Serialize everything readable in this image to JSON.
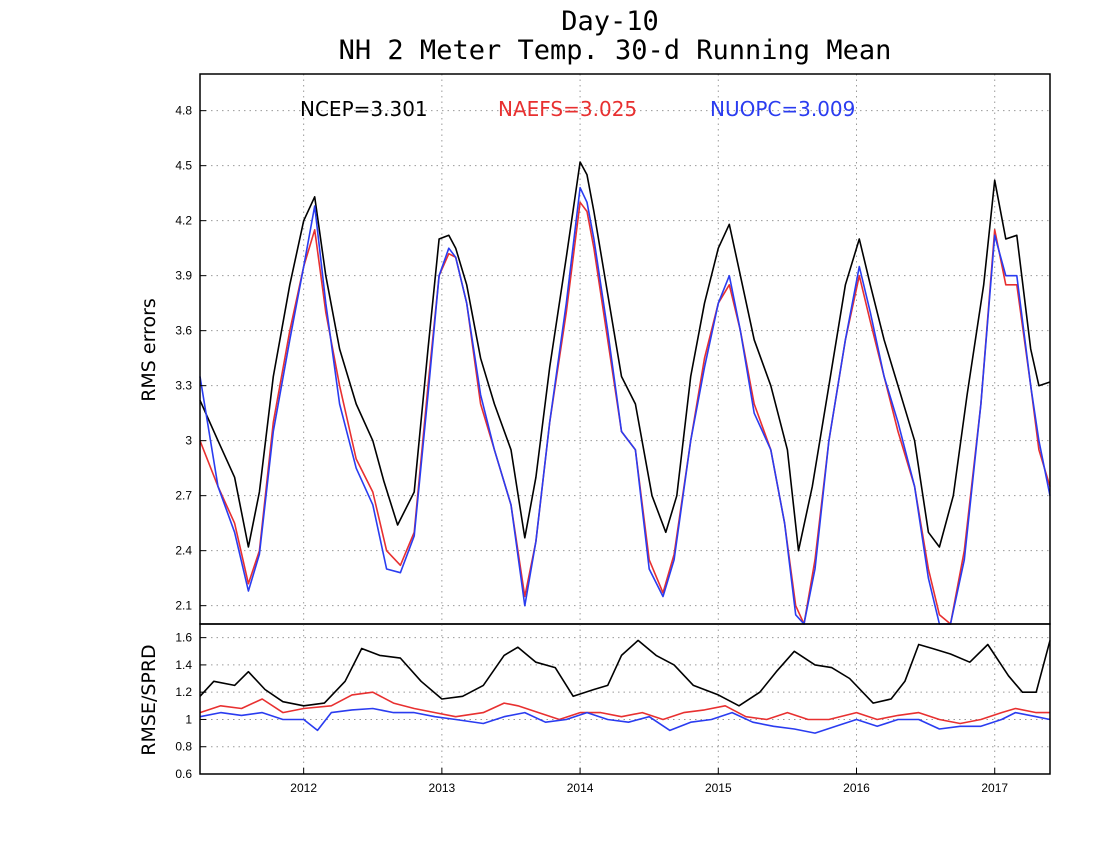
{
  "chart_data": [
    {
      "type": "line",
      "title": "Day-10",
      "subtitle": "NH 2 Meter Temp. 30-d Running Mean",
      "ylabel": "RMS errors",
      "xlim": [
        2011.25,
        2017.4
      ],
      "ylim": [
        2.0,
        5.0
      ],
      "yticks": [
        "2.1",
        "2.4",
        "2.7",
        "3",
        "3.3",
        "3.6",
        "3.9",
        "4.2",
        "4.5",
        "4.8"
      ],
      "grid": true,
      "legend_placement": "top",
      "stats": [
        {
          "label": "NCEP=3.301",
          "color": "#000000"
        },
        {
          "label": "NAEFS=3.025",
          "color": "#e83030"
        },
        {
          "label": "NUOPC=3.009",
          "color": "#2a3cf0"
        }
      ],
      "series": [
        {
          "name": "NCEP",
          "color": "#000000",
          "x": [
            2011.25,
            2011.38,
            2011.5,
            2011.6,
            2011.68,
            2011.78,
            2011.9,
            2012.0,
            2012.08,
            2012.16,
            2012.26,
            2012.38,
            2012.5,
            2012.58,
            2012.68,
            2012.8,
            2012.9,
            2012.98,
            2013.05,
            2013.1,
            2013.18,
            2013.28,
            2013.38,
            2013.5,
            2013.6,
            2013.68,
            2013.78,
            2013.9,
            2014.0,
            2014.05,
            2014.1,
            2014.2,
            2014.3,
            2014.4,
            2014.52,
            2014.62,
            2014.7,
            2014.8,
            2014.9,
            2015.0,
            2015.08,
            2015.16,
            2015.26,
            2015.38,
            2015.5,
            2015.58,
            2015.68,
            2015.8,
            2015.92,
            2016.02,
            2016.1,
            2016.2,
            2016.3,
            2016.42,
            2016.52,
            2016.6,
            2016.7,
            2016.8,
            2016.92,
            2017.0,
            2017.08,
            2017.16,
            2017.26,
            2017.32,
            2017.4
          ],
          "values": [
            3.22,
            3.0,
            2.8,
            2.42,
            2.72,
            3.35,
            3.85,
            4.2,
            4.33,
            3.9,
            3.5,
            3.2,
            3.0,
            2.78,
            2.54,
            2.72,
            3.5,
            4.1,
            4.12,
            4.05,
            3.85,
            3.45,
            3.2,
            2.95,
            2.47,
            2.8,
            3.4,
            4.0,
            4.52,
            4.45,
            4.25,
            3.8,
            3.35,
            3.2,
            2.7,
            2.5,
            2.7,
            3.35,
            3.75,
            4.05,
            4.18,
            3.9,
            3.55,
            3.3,
            2.95,
            2.4,
            2.75,
            3.3,
            3.85,
            4.1,
            3.85,
            3.55,
            3.3,
            3.0,
            2.5,
            2.42,
            2.7,
            3.25,
            3.85,
            4.42,
            4.1,
            4.12,
            3.5,
            3.3,
            3.32
          ]
        },
        {
          "name": "NAEFS",
          "color": "#e83030",
          "x": [
            2011.25,
            2011.38,
            2011.5,
            2011.6,
            2011.68,
            2011.78,
            2011.9,
            2012.0,
            2012.08,
            2012.16,
            2012.26,
            2012.38,
            2012.5,
            2012.6,
            2012.7,
            2012.8,
            2012.9,
            2012.98,
            2013.05,
            2013.1,
            2013.18,
            2013.28,
            2013.38,
            2013.5,
            2013.6,
            2013.68,
            2013.78,
            2013.9,
            2014.0,
            2014.05,
            2014.1,
            2014.2,
            2014.3,
            2014.4,
            2014.5,
            2014.6,
            2014.68,
            2014.8,
            2014.9,
            2015.0,
            2015.08,
            2015.16,
            2015.26,
            2015.38,
            2015.48,
            2015.56,
            2015.62,
            2015.7,
            2015.8,
            2015.92,
            2016.02,
            2016.1,
            2016.2,
            2016.3,
            2016.42,
            2016.52,
            2016.6,
            2016.68,
            2016.78,
            2016.9,
            2017.0,
            2017.08,
            2017.16,
            2017.26,
            2017.32,
            2017.4
          ],
          "values": [
            3.0,
            2.75,
            2.55,
            2.22,
            2.4,
            3.1,
            3.6,
            3.95,
            4.15,
            3.7,
            3.3,
            2.9,
            2.72,
            2.4,
            2.32,
            2.5,
            3.3,
            3.9,
            4.02,
            4.0,
            3.75,
            3.2,
            2.95,
            2.65,
            2.15,
            2.45,
            3.1,
            3.7,
            4.3,
            4.25,
            4.05,
            3.55,
            3.05,
            2.95,
            2.35,
            2.17,
            2.38,
            3.0,
            3.45,
            3.75,
            3.85,
            3.6,
            3.2,
            2.95,
            2.55,
            2.1,
            2.0,
            2.35,
            3.0,
            3.55,
            3.9,
            3.65,
            3.35,
            3.05,
            2.75,
            2.3,
            2.05,
            2.0,
            2.4,
            3.2,
            4.15,
            3.85,
            3.85,
            3.3,
            2.95,
            2.75
          ]
        },
        {
          "name": "NUOPC",
          "color": "#2a3cf0",
          "x": [
            2011.25,
            2011.38,
            2011.5,
            2011.6,
            2011.68,
            2011.78,
            2011.9,
            2012.0,
            2012.08,
            2012.16,
            2012.26,
            2012.38,
            2012.5,
            2012.6,
            2012.7,
            2012.8,
            2012.9,
            2012.98,
            2013.05,
            2013.1,
            2013.18,
            2013.28,
            2013.38,
            2013.5,
            2013.6,
            2013.68,
            2013.78,
            2013.9,
            2014.0,
            2014.05,
            2014.1,
            2014.2,
            2014.3,
            2014.4,
            2014.5,
            2014.6,
            2014.68,
            2014.8,
            2014.9,
            2015.0,
            2015.08,
            2015.16,
            2015.26,
            2015.38,
            2015.48,
            2015.56,
            2015.62,
            2015.7,
            2015.8,
            2015.92,
            2016.02,
            2016.1,
            2016.2,
            2016.3,
            2016.42,
            2016.52,
            2016.6,
            2016.68,
            2016.78,
            2016.9,
            2017.0,
            2017.08,
            2017.16,
            2017.26,
            2017.32,
            2017.4
          ],
          "values": [
            3.35,
            2.75,
            2.5,
            2.18,
            2.38,
            3.05,
            3.55,
            3.95,
            4.28,
            3.75,
            3.2,
            2.85,
            2.65,
            2.3,
            2.28,
            2.48,
            3.25,
            3.9,
            4.05,
            4.0,
            3.75,
            3.25,
            2.95,
            2.65,
            2.1,
            2.45,
            3.1,
            3.75,
            4.38,
            4.3,
            4.1,
            3.6,
            3.05,
            2.95,
            2.3,
            2.15,
            2.35,
            3.0,
            3.4,
            3.75,
            3.9,
            3.6,
            3.15,
            2.95,
            2.55,
            2.05,
            2.0,
            2.3,
            3.0,
            3.55,
            3.95,
            3.7,
            3.35,
            3.1,
            2.75,
            2.25,
            2.0,
            2.0,
            2.35,
            3.2,
            4.12,
            3.9,
            3.9,
            3.3,
            3.0,
            2.7
          ]
        }
      ]
    },
    {
      "type": "line",
      "ylabel": "RMSE/SPRD",
      "xlim": [
        2011.25,
        2017.4
      ],
      "ylim": [
        0.6,
        1.7
      ],
      "yticks": [
        "0.6",
        "0.8",
        "1",
        "1.2",
        "1.4",
        "1.6"
      ],
      "xticks": [
        "2012",
        "2013",
        "2014",
        "2015",
        "2016",
        "2017"
      ],
      "grid": true,
      "series": [
        {
          "name": "NCEP",
          "color": "#000000",
          "x": [
            2011.25,
            2011.35,
            2011.5,
            2011.6,
            2011.72,
            2011.85,
            2012.0,
            2012.15,
            2012.3,
            2012.42,
            2012.55,
            2012.7,
            2012.85,
            2013.0,
            2013.15,
            2013.3,
            2013.45,
            2013.55,
            2013.68,
            2013.82,
            2013.95,
            2014.1,
            2014.2,
            2014.3,
            2014.42,
            2014.55,
            2014.68,
            2014.82,
            2015.0,
            2015.15,
            2015.3,
            2015.42,
            2015.55,
            2015.7,
            2015.82,
            2015.95,
            2016.12,
            2016.25,
            2016.35,
            2016.45,
            2016.55,
            2016.68,
            2016.82,
            2016.95,
            2017.1,
            2017.2,
            2017.3,
            2017.4
          ],
          "values": [
            1.17,
            1.28,
            1.25,
            1.35,
            1.22,
            1.13,
            1.1,
            1.12,
            1.28,
            1.52,
            1.47,
            1.45,
            1.28,
            1.15,
            1.17,
            1.25,
            1.47,
            1.53,
            1.42,
            1.38,
            1.17,
            1.22,
            1.25,
            1.47,
            1.58,
            1.47,
            1.4,
            1.25,
            1.18,
            1.1,
            1.2,
            1.35,
            1.5,
            1.4,
            1.38,
            1.3,
            1.12,
            1.15,
            1.28,
            1.55,
            1.52,
            1.48,
            1.42,
            1.55,
            1.32,
            1.2,
            1.2,
            1.58
          ]
        },
        {
          "name": "NAEFS",
          "color": "#e83030",
          "x": [
            2011.25,
            2011.4,
            2011.55,
            2011.7,
            2011.85,
            2012.0,
            2012.2,
            2012.35,
            2012.5,
            2012.65,
            2012.8,
            2012.95,
            2013.1,
            2013.3,
            2013.45,
            2013.55,
            2013.7,
            2013.85,
            2014.0,
            2014.15,
            2014.3,
            2014.45,
            2014.6,
            2014.75,
            2014.9,
            2015.05,
            2015.2,
            2015.35,
            2015.5,
            2015.65,
            2015.8,
            2016.0,
            2016.15,
            2016.3,
            2016.45,
            2016.6,
            2016.75,
            2016.9,
            2017.05,
            2017.15,
            2017.3,
            2017.4
          ],
          "values": [
            1.05,
            1.1,
            1.08,
            1.15,
            1.05,
            1.08,
            1.1,
            1.18,
            1.2,
            1.12,
            1.08,
            1.05,
            1.02,
            1.05,
            1.12,
            1.1,
            1.05,
            1.0,
            1.05,
            1.05,
            1.02,
            1.05,
            1.0,
            1.05,
            1.07,
            1.1,
            1.02,
            1.0,
            1.05,
            1.0,
            1.0,
            1.05,
            1.0,
            1.03,
            1.05,
            1.0,
            0.97,
            1.0,
            1.05,
            1.08,
            1.05,
            1.05
          ]
        },
        {
          "name": "NUOPC",
          "color": "#2a3cf0",
          "x": [
            2011.25,
            2011.4,
            2011.55,
            2011.7,
            2011.85,
            2012.0,
            2012.1,
            2012.2,
            2012.35,
            2012.5,
            2012.65,
            2012.8,
            2012.95,
            2013.1,
            2013.3,
            2013.45,
            2013.6,
            2013.75,
            2013.9,
            2014.05,
            2014.2,
            2014.35,
            2014.5,
            2014.65,
            2014.8,
            2014.95,
            2015.1,
            2015.25,
            2015.4,
            2015.55,
            2015.7,
            2015.85,
            2016.0,
            2016.15,
            2016.3,
            2016.45,
            2016.6,
            2016.75,
            2016.9,
            2017.05,
            2017.15,
            2017.3,
            2017.4
          ],
          "values": [
            1.02,
            1.05,
            1.03,
            1.05,
            1.0,
            1.0,
            0.92,
            1.05,
            1.07,
            1.08,
            1.05,
            1.05,
            1.02,
            1.0,
            0.97,
            1.02,
            1.05,
            0.98,
            1.0,
            1.05,
            1.0,
            0.98,
            1.02,
            0.92,
            0.98,
            1.0,
            1.05,
            0.98,
            0.95,
            0.93,
            0.9,
            0.95,
            1.0,
            0.95,
            1.0,
            1.0,
            0.93,
            0.95,
            0.95,
            1.0,
            1.05,
            1.02,
            1.0
          ]
        }
      ]
    }
  ]
}
